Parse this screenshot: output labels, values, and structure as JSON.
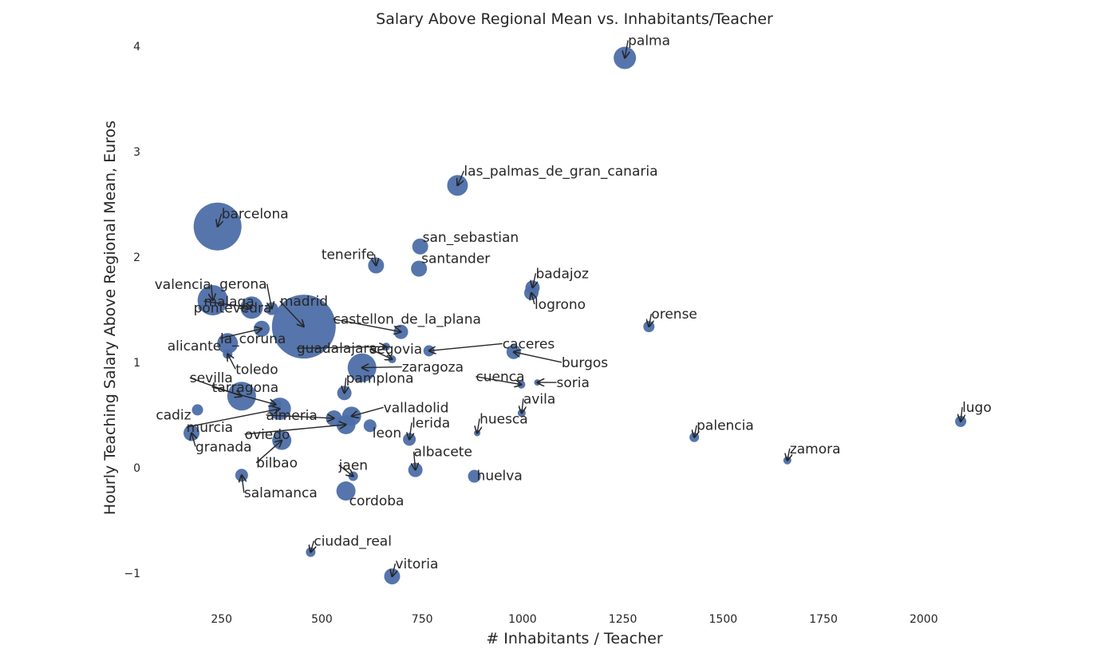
{
  "chart_data": {
    "type": "scatter",
    "title": "Salary Above Regional Mean vs. Inhabitants/Teacher",
    "xlabel": "# Inhabitants / Teacher",
    "ylabel": "Hourly Teaching Salary Above Regional Mean, Euros",
    "xlim": [
      62,
      2130
    ],
    "ylim": [
      -1.3,
      4.2
    ],
    "xticks": [
      250,
      500,
      750,
      1000,
      1250,
      1500,
      1750,
      2000
    ],
    "yticks": [
      -1,
      0,
      1,
      2,
      3,
      4
    ],
    "ytick_labels": [
      "−1",
      "0",
      "1",
      "2",
      "3",
      "4"
    ],
    "grid": false,
    "marker_color": "#4c6ea8",
    "points": [
      {
        "label": "palma",
        "x": 1255,
        "y": 3.89,
        "size": 14
      },
      {
        "label": "las_palmas_de_gran_canaria",
        "x": 838,
        "y": 2.68,
        "size": 13
      },
      {
        "label": "barcelona",
        "x": 240,
        "y": 2.29,
        "size": 30
      },
      {
        "label": "san_sebastian",
        "x": 745,
        "y": 2.1,
        "size": 10
      },
      {
        "label": "tenerife",
        "x": 635,
        "y": 1.92,
        "size": 10
      },
      {
        "label": "santander",
        "x": 742,
        "y": 1.89,
        "size": 10
      },
      {
        "label": "badajoz",
        "x": 1025,
        "y": 1.71,
        "size": 9
      },
      {
        "label": "logrono",
        "x": 1022,
        "y": 1.66,
        "size": 9
      },
      {
        "label": "valencia",
        "x": 228,
        "y": 1.59,
        "size": 19
      },
      {
        "label": "gerona",
        "x": 375,
        "y": 1.51,
        "size": 8
      },
      {
        "label": "madrid",
        "x": 455,
        "y": 1.34,
        "size": 40
      },
      {
        "label": "pontevedra",
        "x": 200,
        "y": 1.52,
        "size": 4
      },
      {
        "label": "malaga",
        "x": 325,
        "y": 1.52,
        "size": 14
      },
      {
        "label": "orense",
        "x": 1315,
        "y": 1.34,
        "size": 7
      },
      {
        "label": "castellon_de_la_plana",
        "x": 697,
        "y": 1.29,
        "size": 9
      },
      {
        "label": "la_coruna",
        "x": 350,
        "y": 1.32,
        "size": 10
      },
      {
        "label": "alicante",
        "x": 265,
        "y": 1.18,
        "size": 13
      },
      {
        "label": "guadalajara",
        "x": 660,
        "y": 1.15,
        "size": 5
      },
      {
        "label": "caceres",
        "x": 767,
        "y": 1.11,
        "size": 7
      },
      {
        "label": "burgos",
        "x": 978,
        "y": 1.1,
        "size": 9
      },
      {
        "label": "toledo",
        "x": 265,
        "y": 1.08,
        "size": 6
      },
      {
        "label": "segovia",
        "x": 675,
        "y": 1.03,
        "size": 5
      },
      {
        "label": "zaragoza",
        "x": 600,
        "y": 0.95,
        "size": 18
      },
      {
        "label": "cuenca",
        "x": 997,
        "y": 0.79,
        "size": 5
      },
      {
        "label": "soria",
        "x": 1037,
        "y": 0.81,
        "size": 4
      },
      {
        "label": "pamplona",
        "x": 556,
        "y": 0.71,
        "size": 9
      },
      {
        "label": "sevilla",
        "x": 300,
        "y": 0.68,
        "size": 18
      },
      {
        "label": "tarragona",
        "x": 385,
        "y": 0.6,
        "size": 7
      },
      {
        "label": "avila",
        "x": 998,
        "y": 0.52,
        "size": 5
      },
      {
        "label": "cadiz",
        "x": 190,
        "y": 0.55,
        "size": 7
      },
      {
        "label": "valladolid",
        "x": 574,
        "y": 0.49,
        "size": 12
      },
      {
        "label": "almeria",
        "x": 530,
        "y": 0.47,
        "size": 10
      },
      {
        "label": "murcia",
        "x": 395,
        "y": 0.56,
        "size": 14
      },
      {
        "label": "lugo",
        "x": 2092,
        "y": 0.44,
        "size": 7
      },
      {
        "label": "oviedo",
        "x": 560,
        "y": 0.41,
        "size": 12
      },
      {
        "label": "huesca",
        "x": 887,
        "y": 0.33,
        "size": 4
      },
      {
        "label": "leon",
        "x": 620,
        "y": 0.4,
        "size": 8
      },
      {
        "label": "lerida",
        "x": 718,
        "y": 0.27,
        "size": 8
      },
      {
        "label": "palencia",
        "x": 1428,
        "y": 0.29,
        "size": 6
      },
      {
        "label": "granada",
        "x": 175,
        "y": 0.33,
        "size": 10
      },
      {
        "label": "bilbao",
        "x": 400,
        "y": 0.26,
        "size": 12
      },
      {
        "label": "zamora",
        "x": 1660,
        "y": 0.07,
        "size": 5
      },
      {
        "label": "albacete",
        "x": 733,
        "y": -0.02,
        "size": 9
      },
      {
        "label": "jaen",
        "x": 578,
        "y": -0.08,
        "size": 6
      },
      {
        "label": "huelva",
        "x": 880,
        "y": -0.08,
        "size": 8
      },
      {
        "label": "salamanca",
        "x": 300,
        "y": -0.07,
        "size": 8
      },
      {
        "label": "cordoba",
        "x": 560,
        "y": -0.22,
        "size": 12
      },
      {
        "label": "ciudad_real",
        "x": 472,
        "y": -0.8,
        "size": 6
      },
      {
        "label": "vitoria",
        "x": 675,
        "y": -1.03,
        "size": 10
      }
    ]
  }
}
